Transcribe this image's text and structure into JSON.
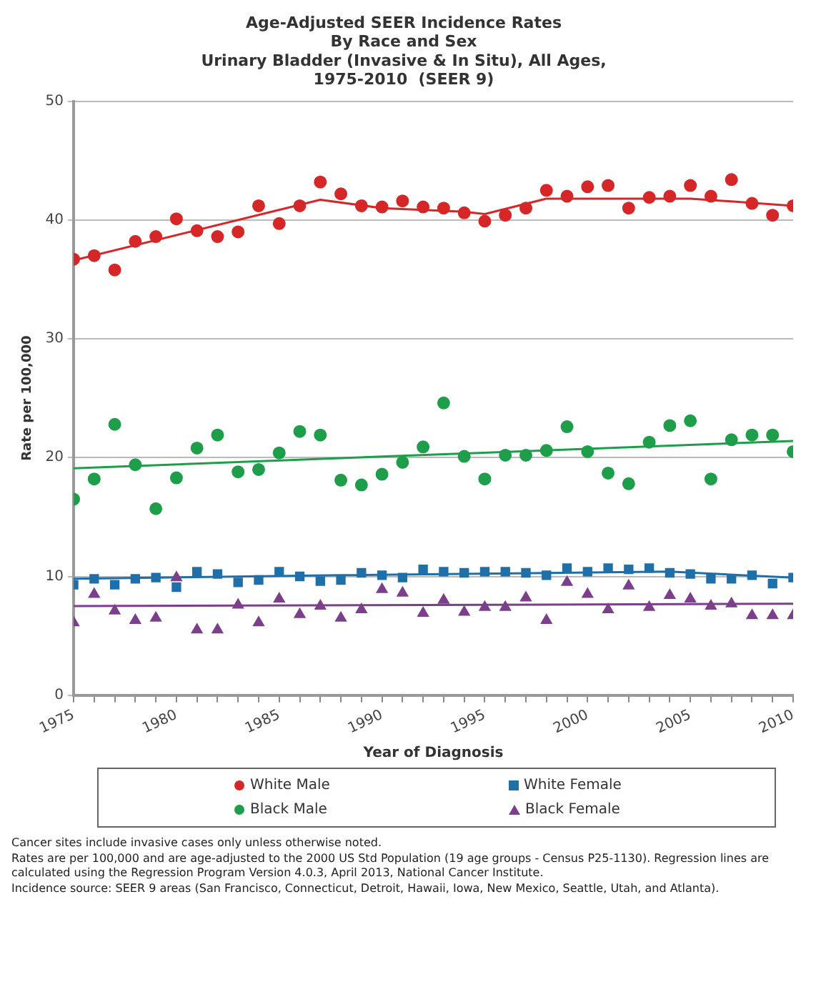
{
  "chart_data": {
    "type": "scatter",
    "title": "Age-Adjusted SEER Incidence Rates\nBy Race and Sex\nUrinary Bladder (Invasive & In Situ), All Ages,\n1975-2010  (SEER 9)",
    "xlabel": "Year of Diagnosis",
    "ylabel": "Rate per 100,000",
    "x": [
      1975,
      1976,
      1977,
      1978,
      1979,
      1980,
      1981,
      1982,
      1983,
      1984,
      1985,
      1986,
      1987,
      1988,
      1989,
      1990,
      1991,
      1992,
      1993,
      1994,
      1995,
      1996,
      1997,
      1998,
      1999,
      2000,
      2001,
      2002,
      2003,
      2004,
      2005,
      2006,
      2007,
      2008,
      2009,
      2010
    ],
    "series": [
      {
        "name": "White Male",
        "color": "#d62728",
        "marker": "circle",
        "values": [
          36.7,
          37.0,
          35.8,
          38.2,
          38.6,
          40.1,
          39.1,
          38.6,
          39.0,
          41.2,
          39.7,
          41.2,
          43.2,
          42.2,
          41.2,
          41.1,
          41.6,
          41.1,
          41.0,
          40.6,
          39.9,
          40.4,
          41.0,
          42.5,
          42.0,
          42.8,
          42.9,
          41.0,
          41.9,
          42.0,
          42.9,
          42.0,
          43.4,
          41.4,
          40.4,
          41.2
        ]
      },
      {
        "name": "White Female",
        "color": "#1f6fa8",
        "marker": "square",
        "values": [
          9.3,
          9.8,
          9.3,
          9.8,
          9.9,
          9.1,
          10.4,
          10.2,
          9.5,
          9.7,
          10.4,
          10.0,
          9.6,
          9.7,
          10.3,
          10.1,
          9.9,
          10.6,
          10.4,
          10.3,
          10.4,
          10.4,
          10.3,
          10.1,
          10.7,
          10.4,
          10.7,
          10.6,
          10.7,
          10.3,
          10.2,
          9.8,
          9.8,
          10.1,
          9.4,
          9.9
        ]
      },
      {
        "name": "Black Male",
        "color": "#1e9e4a",
        "marker": "circle",
        "values": [
          16.5,
          18.2,
          22.8,
          19.4,
          15.7,
          18.3,
          20.8,
          21.9,
          18.8,
          19.0,
          20.4,
          22.2,
          21.9,
          18.1,
          17.7,
          18.6,
          19.6,
          20.9,
          24.6,
          20.1,
          18.2,
          20.2,
          20.2,
          20.6,
          22.6,
          20.5,
          18.7,
          17.8,
          21.3,
          22.7,
          23.1,
          18.2,
          21.5,
          21.9,
          21.9,
          20.5
        ]
      },
      {
        "name": "Black Female",
        "color": "#7b3f8c",
        "marker": "triangle",
        "values": [
          6.1,
          8.5,
          7.1,
          6.3,
          6.5,
          9.9,
          5.5,
          5.5,
          7.6,
          6.1,
          8.1,
          6.8,
          7.5,
          6.5,
          7.2,
          8.9,
          8.6,
          6.9,
          8.0,
          7.0,
          7.4,
          7.4,
          8.2,
          6.3,
          9.5,
          8.5,
          7.2,
          9.2,
          7.4,
          8.4,
          8.1,
          7.5,
          7.7,
          6.7,
          6.7,
          6.7
        ]
      },
      {
        "type": "line",
        "color": "#d62728",
        "x": [
          1975,
          1987,
          1990,
          1994,
          1995,
          1998,
          2005,
          2010
        ],
        "values": [
          36.6,
          41.7,
          41.0,
          40.7,
          40.5,
          41.8,
          41.8,
          41.2
        ]
      },
      {
        "type": "line",
        "color": "#1f6fa8",
        "x": [
          1975,
          1988,
          2004,
          2010
        ],
        "values": [
          9.8,
          10.1,
          10.4,
          9.9
        ]
      },
      {
        "type": "line",
        "color": "#1e9e4a",
        "x": [
          1975,
          2010
        ],
        "values": [
          19.1,
          21.4
        ]
      },
      {
        "type": "line",
        "color": "#7b3f8c",
        "x": [
          1975,
          2010
        ],
        "values": [
          7.5,
          7.7
        ]
      }
    ],
    "xlim": [
      1975,
      2010
    ],
    "xticks": [
      1975,
      {
        "value": 1976,
        "label": null
      },
      {
        "value": 1977,
        "label": null
      },
      {
        "value": 1978,
        "label": null
      },
      {
        "value": 1979,
        "label": null
      },
      1980,
      {
        "value": 1981,
        "label": null
      },
      {
        "value": 1982,
        "label": null
      },
      {
        "value": 1983,
        "label": null
      },
      {
        "value": 1984,
        "label": null
      },
      1985,
      {
        "value": 1986,
        "label": null
      },
      {
        "value": 1987,
        "label": null
      },
      {
        "value": 1988,
        "label": null
      },
      {
        "value": 1989,
        "label": null
      },
      1990,
      {
        "value": 1991,
        "label": null
      },
      {
        "value": 1992,
        "label": null
      },
      {
        "value": 1993,
        "label": null
      },
      {
        "value": 1994,
        "label": null
      },
      1995,
      {
        "value": 1996,
        "label": null
      },
      {
        "value": 1997,
        "label": null
      },
      {
        "value": 1998,
        "label": null
      },
      {
        "value": 1999,
        "label": null
      },
      2000,
      {
        "value": 2001,
        "label": null
      },
      {
        "value": 2002,
        "label": null
      },
      {
        "value": 2003,
        "label": null
      },
      {
        "value": 2004,
        "label": null
      },
      2005,
      {
        "value": 2006,
        "label": null
      },
      {
        "value": 2007,
        "label": null
      },
      {
        "value": 2008,
        "label": null
      },
      {
        "value": 2009,
        "label": null
      },
      2010
    ],
    "ylim": [
      0,
      50
    ],
    "yticks": [
      0,
      10,
      20,
      30,
      40,
      50
    ],
    "grid": "y",
    "legend": "bottom",
    "annotations": [
      "Cancer sites include invasive cases only unless otherwise noted.",
      "Rates are per 100,000 and are age-adjusted to the 2000 US Std Population (19 age groups - Census P25-1130). Regression lines are calculated using the Regression Program Version 4.0.3, April 2013, National Cancer Institute.",
      "Incidence source: SEER 9 areas (San Francisco, Connecticut, Detroit, Hawaii, Iowa, New Mexico, Seattle, Utah, and Atlanta)."
    ]
  }
}
